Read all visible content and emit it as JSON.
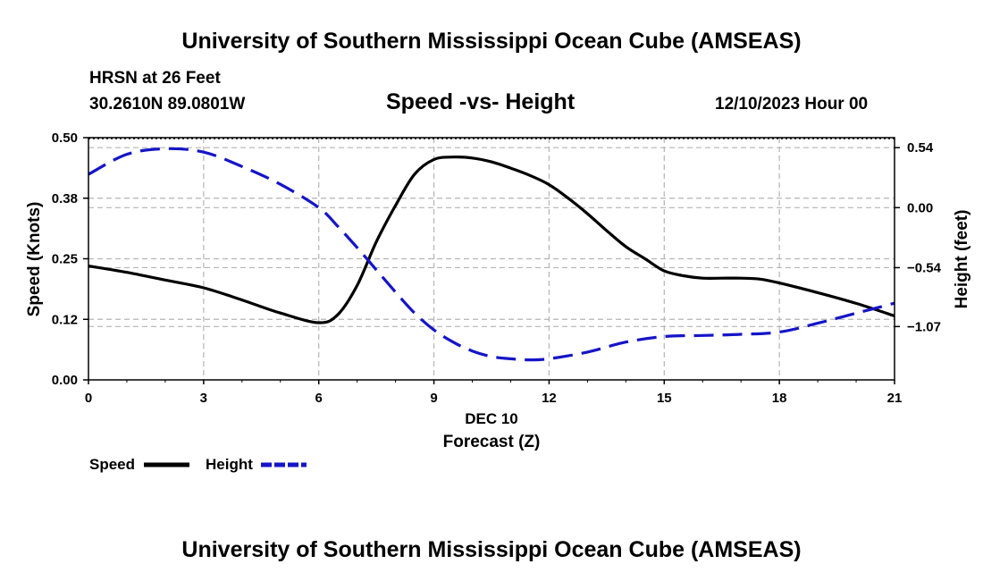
{
  "header": {
    "title": "University of Southern Mississippi Ocean Cube (AMSEAS)",
    "station": "HRSN at 26 Feet",
    "coords": "30.2610N  89.0801W",
    "date": "12/10/2023 Hour 00"
  },
  "footer": {
    "title": "University of Southern Mississippi Ocean Cube (AMSEAS)"
  },
  "colors": {
    "speed": "#000000",
    "height": "#1515c8",
    "grid": "#b4b4b4"
  },
  "chart_data": {
    "type": "line",
    "title": "Speed -vs- Height",
    "xlabel": "Forecast (Z)",
    "xlabel_date": "DEC 10",
    "ylabel": "Speed (Knots)",
    "y2label": "Height (feet)",
    "xlim": [
      0,
      21
    ],
    "ylim": [
      0,
      0.5
    ],
    "y2lim": [
      -1.55,
      0.63
    ],
    "x_ticks": [
      0,
      3,
      6,
      9,
      12,
      15,
      18,
      21
    ],
    "x_tick_labels": [
      "0",
      "3",
      "6",
      "9",
      "12",
      "15",
      "18",
      "21"
    ],
    "y_ticks": [
      0.0,
      0.125,
      0.25,
      0.375,
      0.5
    ],
    "y_tick_labels": [
      "0.00",
      "0.12",
      "0.25",
      "0.38",
      "0.50"
    ],
    "y2_ticks": [
      0.54,
      0.0,
      -0.54,
      -1.07
    ],
    "y2_tick_labels": [
      "0.54",
      "0.00",
      "−0.54",
      "−1.07"
    ],
    "grid": true,
    "legend": {
      "placement": "bottom-left",
      "speed_label": "Speed",
      "height_label": "Height"
    },
    "series": [
      {
        "name": "Speed",
        "axis": "left",
        "style": "solid",
        "x": [
          0,
          1,
          2,
          3,
          4,
          5,
          6,
          6.5,
          7,
          7.5,
          8,
          8.5,
          9,
          9.5,
          10,
          10.5,
          11,
          11.5,
          12,
          12.5,
          13,
          13.5,
          14,
          14.5,
          15,
          15.5,
          16,
          16.5,
          17,
          17.5,
          18,
          19,
          20,
          21
        ],
        "values": [
          0.235,
          0.222,
          0.206,
          0.19,
          0.165,
          0.138,
          0.118,
          0.135,
          0.195,
          0.285,
          0.36,
          0.425,
          0.455,
          0.46,
          0.458,
          0.45,
          0.437,
          0.422,
          0.403,
          0.375,
          0.343,
          0.308,
          0.275,
          0.25,
          0.225,
          0.215,
          0.21,
          0.21,
          0.21,
          0.208,
          0.2,
          0.18,
          0.158,
          0.132
        ]
      },
      {
        "name": "Height",
        "axis": "right",
        "style": "dashed",
        "x": [
          0,
          1,
          2,
          3,
          4,
          5,
          6,
          6.5,
          7,
          7.5,
          8,
          8.5,
          9,
          9.5,
          10,
          10.5,
          11,
          11.5,
          12,
          13,
          14,
          15,
          16,
          17,
          18,
          19,
          20,
          21
        ],
        "values": [
          0.3,
          0.48,
          0.53,
          0.5,
          0.37,
          0.21,
          0.0,
          -0.17,
          -0.36,
          -0.56,
          -0.76,
          -0.95,
          -1.1,
          -1.21,
          -1.29,
          -1.34,
          -1.36,
          -1.37,
          -1.36,
          -1.3,
          -1.21,
          -1.16,
          -1.15,
          -1.14,
          -1.12,
          -1.04,
          -0.95,
          -0.86
        ]
      }
    ]
  }
}
